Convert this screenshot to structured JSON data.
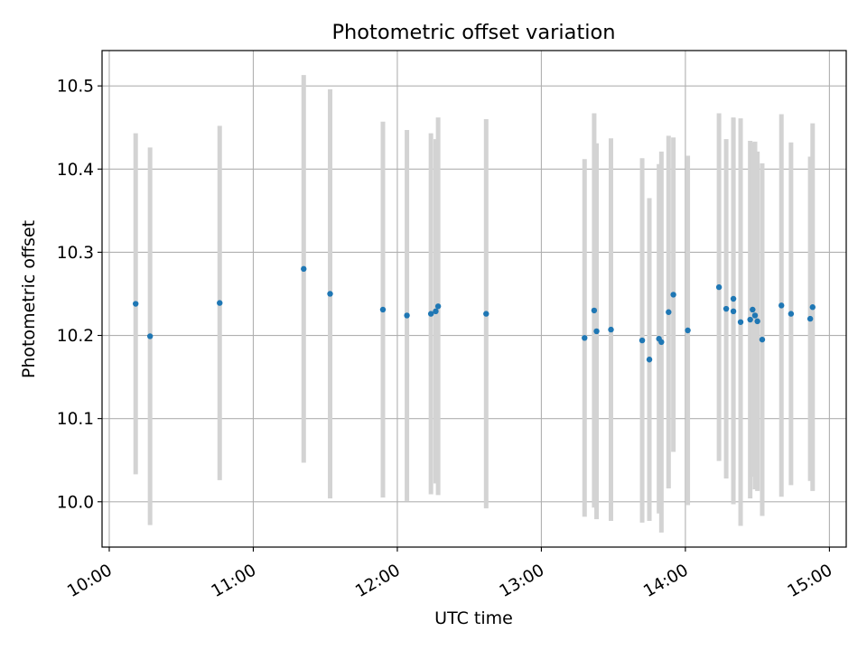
{
  "chart_data": {
    "type": "scatter",
    "title": "Photometric offset variation",
    "xlabel": "UTC time",
    "ylabel": "Photometric offset",
    "x_axis": "time",
    "xlim": [
      "09:57",
      "15:07"
    ],
    "ylim": [
      9.9455,
      10.5425
    ],
    "grid": true,
    "x_ticks": [
      "10:00",
      "11:00",
      "12:00",
      "13:00",
      "14:00",
      "15:00"
    ],
    "y_ticks": [
      "10.0",
      "10.1",
      "10.2",
      "10.3",
      "10.4",
      "10.5"
    ],
    "colors": {
      "point": "#1f77b4",
      "errorbar": "#d3d3d3",
      "grid": "#b0b0b0"
    },
    "points": [
      {
        "time": "10:11",
        "y": 10.238,
        "err": 0.205
      },
      {
        "time": "10:17",
        "y": 10.199,
        "err": 0.227
      },
      {
        "time": "10:46",
        "y": 10.239,
        "err": 0.213
      },
      {
        "time": "11:21",
        "y": 10.28,
        "err": 0.233
      },
      {
        "time": "11:32",
        "y": 10.25,
        "err": 0.246
      },
      {
        "time": "11:54",
        "y": 10.231,
        "err": 0.226
      },
      {
        "time": "12:04",
        "y": 10.224,
        "err": 0.223
      },
      {
        "time": "12:14",
        "y": 10.226,
        "err": 0.217
      },
      {
        "time": "12:16",
        "y": 10.229,
        "err": 0.207
      },
      {
        "time": "12:17",
        "y": 10.235,
        "err": 0.227
      },
      {
        "time": "12:37",
        "y": 10.226,
        "err": 0.234
      },
      {
        "time": "13:18",
        "y": 10.197,
        "err": 0.215
      },
      {
        "time": "13:22",
        "y": 10.23,
        "err": 0.237
      },
      {
        "time": "13:23",
        "y": 10.205,
        "err": 0.226
      },
      {
        "time": "13:29",
        "y": 10.207,
        "err": 0.23
      },
      {
        "time": "13:42",
        "y": 10.194,
        "err": 0.219
      },
      {
        "time": "13:45",
        "y": 10.171,
        "err": 0.194
      },
      {
        "time": "13:49",
        "y": 10.196,
        "err": 0.21
      },
      {
        "time": "13:50",
        "y": 10.192,
        "err": 0.229
      },
      {
        "time": "13:53",
        "y": 10.228,
        "err": 0.212
      },
      {
        "time": "13:55",
        "y": 10.249,
        "err": 0.189
      },
      {
        "time": "14:01",
        "y": 10.206,
        "err": 0.21
      },
      {
        "time": "14:14",
        "y": 10.258,
        "err": 0.209
      },
      {
        "time": "14:17",
        "y": 10.232,
        "err": 0.204
      },
      {
        "time": "14:20",
        "y": 10.244,
        "err": 0.218
      },
      {
        "time": "14:20",
        "y": 10.229,
        "err": 0.232
      },
      {
        "time": "14:23",
        "y": 10.216,
        "err": 0.245
      },
      {
        "time": "14:27",
        "y": 10.219,
        "err": 0.215
      },
      {
        "time": "14:28",
        "y": 10.231,
        "err": 0.201
      },
      {
        "time": "14:29",
        "y": 10.224,
        "err": 0.209
      },
      {
        "time": "14:30",
        "y": 10.217,
        "err": 0.204
      },
      {
        "time": "14:32",
        "y": 10.195,
        "err": 0.212
      },
      {
        "time": "14:40",
        "y": 10.236,
        "err": 0.23
      },
      {
        "time": "14:44",
        "y": 10.226,
        "err": 0.206
      },
      {
        "time": "14:52",
        "y": 10.22,
        "err": 0.195
      },
      {
        "time": "14:53",
        "y": 10.234,
        "err": 0.221
      }
    ]
  }
}
